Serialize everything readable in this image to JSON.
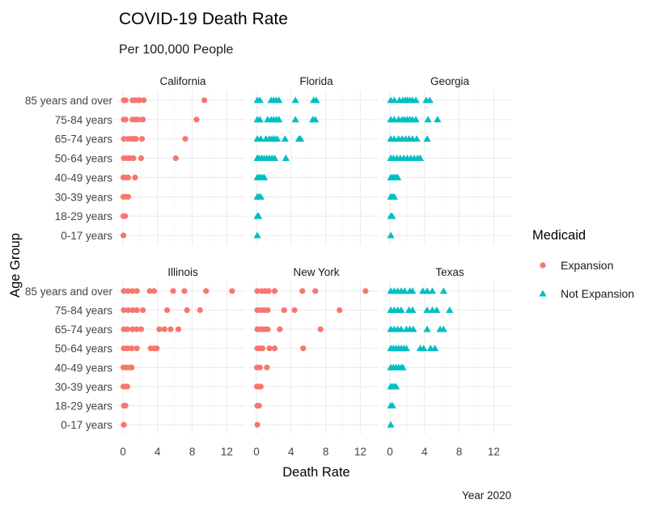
{
  "chart_data": {
    "type": "scatter",
    "title": "COVID-19 Death Rate",
    "subtitle": "Per 100,000 People",
    "xlabel": "Death Rate",
    "ylabel": "Age Group",
    "caption": "Year 2020",
    "xlim": [
      0,
      13
    ],
    "x_ticks": [
      0,
      4,
      8,
      12
    ],
    "categories": [
      "0-17 years",
      "18-29 years",
      "30-39 years",
      "40-49 years",
      "50-64 years",
      "65-74 years",
      "75-84 years",
      "85 years and over"
    ],
    "grid": true,
    "legend": {
      "title": "Medicaid",
      "position": "right",
      "entries": [
        {
          "label": "Expansion",
          "color": "#F8766D",
          "shape": "circle"
        },
        {
          "label": "Not Expansion",
          "color": "#00BFC4",
          "shape": "triangle"
        }
      ]
    },
    "panels": [
      {
        "state": "California",
        "group": "Expansion",
        "points": {
          "85 years and over": [
            0.1,
            0.3,
            1.1,
            1.4,
            1.7,
            1.9,
            2.4,
            9.4
          ],
          "75-84 years": [
            0.1,
            0.3,
            1.1,
            1.4,
            1.6,
            1.8,
            2.3,
            8.5
          ],
          "65-74 years": [
            0.1,
            0.6,
            1.0,
            1.3,
            1.5,
            2.2,
            7.2
          ],
          "50-64 years": [
            0.1,
            0.5,
            0.8,
            1.2,
            2.1,
            6.1
          ],
          "40-49 years": [
            0.05,
            0.3,
            0.6,
            1.4
          ],
          "30-39 years": [
            0.05,
            0.3,
            0.6
          ],
          "18-29 years": [
            0.05,
            0.25
          ],
          "0-17 years": [
            0.05
          ]
        }
      },
      {
        "state": "Florida",
        "group": "Not Expansion",
        "points": {
          "85 years and over": [
            0.1,
            0.4,
            1.7,
            2.0,
            2.3,
            2.6,
            4.5,
            6.6,
            6.9
          ],
          "75-84 years": [
            0.1,
            0.4,
            1.3,
            1.7,
            2.0,
            2.3,
            2.6,
            4.5,
            6.5,
            6.8
          ],
          "65-74 years": [
            0.1,
            0.5,
            1.1,
            1.5,
            1.8,
            2.1,
            2.4,
            3.3,
            4.9,
            5.1
          ],
          "50-64 years": [
            0.1,
            0.3,
            0.6,
            0.9,
            1.2,
            1.5,
            1.8,
            2.1,
            3.4
          ],
          "40-49 years": [
            0.1,
            0.3,
            0.5,
            0.7,
            0.9
          ],
          "30-39 years": [
            0.1,
            0.3,
            0.5
          ],
          "18-29 years": [
            0.1,
            0.25
          ],
          "0-17 years": [
            0.1
          ]
        }
      },
      {
        "state": "Georgia",
        "group": "Not Expansion",
        "points": {
          "85 years and over": [
            0.1,
            0.5,
            1.1,
            1.5,
            1.8,
            2.0,
            2.3,
            2.6,
            3.0,
            4.2,
            4.6
          ],
          "75-84 years": [
            0.1,
            0.5,
            1.0,
            1.4,
            1.7,
            2.0,
            2.3,
            2.6,
            3.0,
            4.4,
            5.5
          ],
          "65-74 years": [
            0.1,
            0.5,
            1.0,
            1.4,
            1.8,
            2.2,
            2.6,
            3.1,
            4.3
          ],
          "50-64 years": [
            0.1,
            0.4,
            0.8,
            1.2,
            1.6,
            2.0,
            2.4,
            2.8,
            3.2,
            3.5
          ],
          "40-49 years": [
            0.1,
            0.3,
            0.5,
            0.7,
            0.9
          ],
          "30-39 years": [
            0.1,
            0.3,
            0.5
          ],
          "18-29 years": [
            0.1,
            0.25
          ],
          "0-17 years": [
            0.1
          ]
        }
      },
      {
        "state": "Illinois",
        "group": "Expansion",
        "points": {
          "85 years and over": [
            0.1,
            0.6,
            1.1,
            1.6,
            3.1,
            3.6,
            5.8,
            7.1,
            9.6,
            12.6
          ],
          "75-84 years": [
            0.1,
            0.6,
            1.1,
            1.6,
            2.3,
            5.1,
            7.4,
            8.9
          ],
          "65-74 years": [
            0.1,
            0.5,
            1.1,
            1.6,
            2.1,
            4.2,
            4.8,
            5.5,
            6.4
          ],
          "50-64 years": [
            0.1,
            0.5,
            1.0,
            1.6,
            3.2,
            3.6,
            3.9
          ],
          "40-49 years": [
            0.05,
            0.4,
            0.8,
            1.0
          ],
          "30-39 years": [
            0.05,
            0.3,
            0.5
          ],
          "18-29 years": [
            0.1,
            0.3
          ],
          "0-17 years": [
            0.1
          ]
        }
      },
      {
        "state": "New York",
        "group": "Expansion",
        "points": {
          "85 years and over": [
            0.1,
            0.6,
            1.0,
            1.4,
            2.1,
            5.3,
            6.8,
            12.6
          ],
          "75-84 years": [
            0.1,
            0.5,
            0.9,
            1.3,
            3.2,
            4.4,
            9.6
          ],
          "65-74 years": [
            0.1,
            0.4,
            0.7,
            1.0,
            1.3,
            2.7,
            7.4
          ],
          "50-64 years": [
            0.1,
            0.4,
            0.7,
            1.5,
            2.1,
            5.4
          ],
          "40-49 years": [
            0.05,
            0.4,
            1.2
          ],
          "30-39 years": [
            0.05,
            0.3,
            0.5
          ],
          "18-29 years": [
            0.1,
            0.3
          ],
          "0-17 years": [
            0.1
          ]
        }
      },
      {
        "state": "Texas",
        "group": "Not Expansion",
        "points": {
          "85 years and over": [
            0.1,
            0.5,
            0.9,
            1.3,
            1.7,
            2.3,
            2.6,
            3.8,
            4.3,
            4.9,
            6.2
          ],
          "75-84 years": [
            0.1,
            0.5,
            0.9,
            1.3,
            2.2,
            2.6,
            4.3,
            4.9,
            5.4,
            6.9
          ],
          "65-74 years": [
            0.1,
            0.5,
            0.9,
            1.3,
            1.9,
            2.3,
            2.7,
            4.3,
            5.8,
            6.2
          ],
          "50-64 years": [
            0.1,
            0.4,
            0.7,
            1.0,
            1.3,
            1.6,
            1.9,
            3.5,
            3.9,
            4.7,
            5.2
          ],
          "40-49 years": [
            0.1,
            0.4,
            0.7,
            1.0,
            1.3,
            1.5
          ],
          "30-39 years": [
            0.1,
            0.3,
            0.5,
            0.7
          ],
          "18-29 years": [
            0.1,
            0.3
          ],
          "0-17 years": [
            0.1
          ]
        }
      }
    ]
  }
}
